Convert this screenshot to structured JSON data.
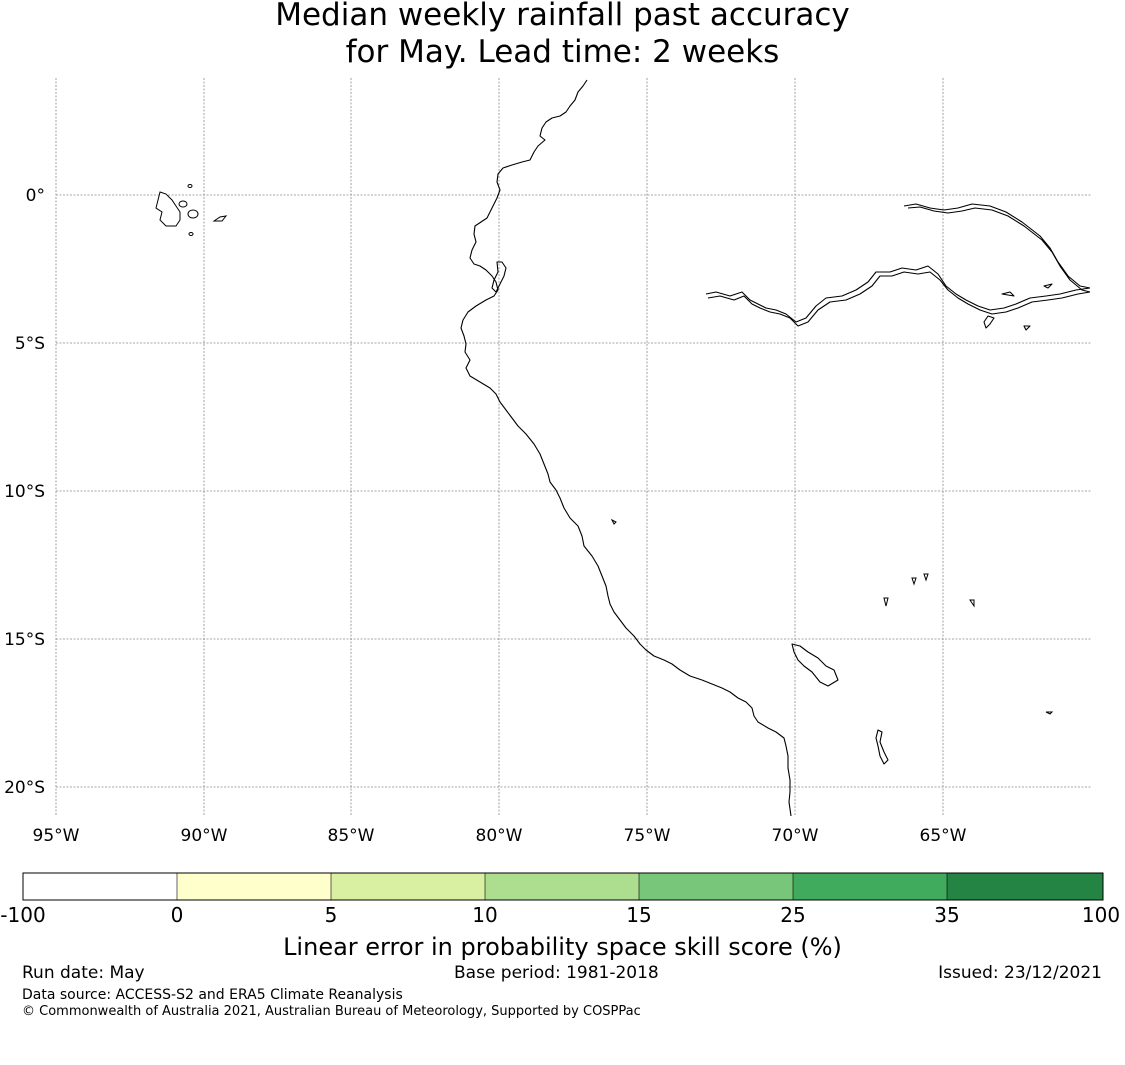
{
  "title": {
    "line1": "Median weekly rainfall past accuracy",
    "line2": "for May. Lead time: 2 weeks"
  },
  "map": {
    "longitude_labels": [
      "95°W",
      "90°W",
      "85°W",
      "80°W",
      "75°W",
      "70°W",
      "65°W"
    ],
    "latitude_labels": [
      "0°",
      "5°S",
      "10°S",
      "15°S",
      "20°S"
    ],
    "gridlines": true
  },
  "colorbar": {
    "boundaries": [
      "-100",
      "0",
      "5",
      "10",
      "15",
      "25",
      "35",
      "100"
    ],
    "colors": [
      "#ffffff",
      "#ffffcc",
      "#d9f0a3",
      "#addd8e",
      "#78c679",
      "#41ab5d",
      "#238443"
    ],
    "label": "Linear error in probability space skill score (%)"
  },
  "footer": {
    "run_date": "Run date: May",
    "base_period": "Base period: 1981-2018",
    "issued": "Issued: 23/12/2021",
    "data_source": "Data source: ACCESS-S2 and ERA5 Climate Reanalysis",
    "copyright": "© Commonwealth of Australia 2021, Australian Bureau of Meteorology, Supported by COSPPac"
  }
}
